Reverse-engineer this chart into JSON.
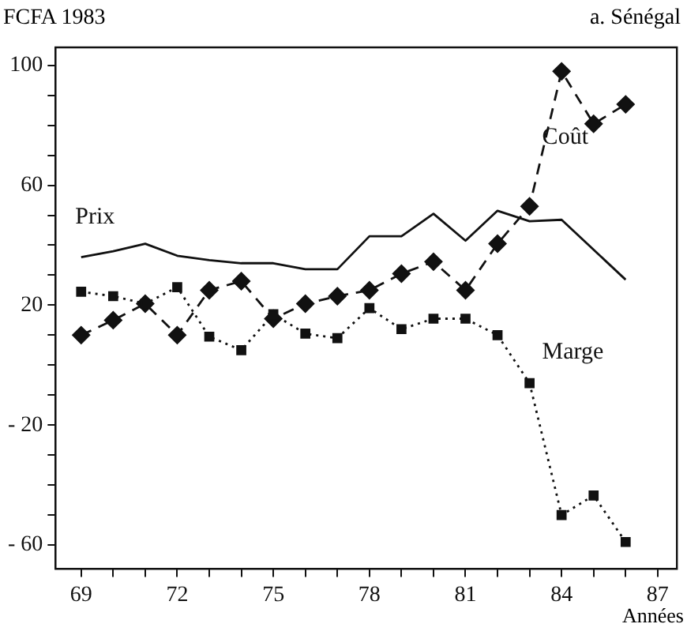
{
  "chart_data": {
    "type": "line",
    "title": "a. Sénégal",
    "ylabel": "FCFA 1983",
    "xlabel": "Années",
    "xlim": [
      68.2,
      87.6
    ],
    "xticks": [
      69,
      {
        "value": 70,
        "label": null
      },
      {
        "value": 71,
        "label": null
      },
      72,
      {
        "value": 73,
        "label": null
      },
      {
        "value": 74,
        "label": null
      },
      75,
      {
        "value": 76,
        "label": null
      },
      {
        "value": 77,
        "label": null
      },
      78,
      {
        "value": 79,
        "label": null
      },
      {
        "value": 80,
        "label": null
      },
      81,
      {
        "value": 82,
        "label": null
      },
      {
        "value": 83,
        "label": null
      },
      84,
      {
        "value": 85,
        "label": null
      },
      {
        "value": 86,
        "label": null
      },
      87
    ],
    "ylim": [
      -68,
      106
    ],
    "yticks": [
      {
        "value": -60,
        "label": "- 60"
      },
      {
        "value": -50,
        "label": null
      },
      {
        "value": -40,
        "label": null
      },
      {
        "value": -30,
        "label": null
      },
      {
        "value": -20,
        "label": "- 20"
      },
      {
        "value": -10,
        "label": null
      },
      {
        "value": 0,
        "label": null
      },
      {
        "value": 10,
        "label": null
      },
      20,
      {
        "value": 30,
        "label": null
      },
      {
        "value": 40,
        "label": null
      },
      {
        "value": 50,
        "label": null
      },
      60,
      {
        "value": 70,
        "label": null
      },
      {
        "value": 80,
        "label": null
      },
      {
        "value": 90,
        "label": null
      },
      100
    ],
    "grid": false,
    "legend": false,
    "series": [
      {
        "name": "Prix",
        "color": "#111111",
        "marker": "none",
        "line_style": "solid",
        "x": [
          69,
          70,
          71,
          72,
          73,
          74,
          75,
          76,
          77,
          78,
          79,
          80,
          81,
          82,
          83,
          84,
          86
        ],
        "values": [
          36,
          38,
          40.5,
          36.5,
          35,
          34,
          34,
          32,
          32,
          43,
          43,
          50.5,
          41.5,
          51.5,
          48,
          48.5,
          28.5
        ]
      },
      {
        "name": "Coût",
        "color": "#111111",
        "marker": "diamond",
        "line_style": "dashed",
        "x": [
          69,
          70,
          71,
          72,
          73,
          74,
          75,
          76,
          77,
          78,
          79,
          80,
          81,
          82,
          83,
          84,
          85,
          86
        ],
        "values": [
          10,
          15,
          20.5,
          10,
          25,
          28,
          15.5,
          20.5,
          23,
          25,
          30.5,
          34.5,
          25,
          40.5,
          53,
          98,
          80.5,
          87
        ]
      },
      {
        "name": "Marge",
        "color": "#111111",
        "marker": "square",
        "line_style": "dotted",
        "x": [
          69,
          70,
          71,
          72,
          73,
          74,
          75,
          76,
          77,
          78,
          79,
          80,
          81,
          82,
          83,
          84,
          85,
          86
        ],
        "values": [
          24.5,
          23,
          20.5,
          26,
          9.5,
          5,
          17,
          10.5,
          9,
          19,
          12,
          15.5,
          15.5,
          10,
          -6,
          -50,
          -43.5,
          -59
        ]
      }
    ]
  }
}
